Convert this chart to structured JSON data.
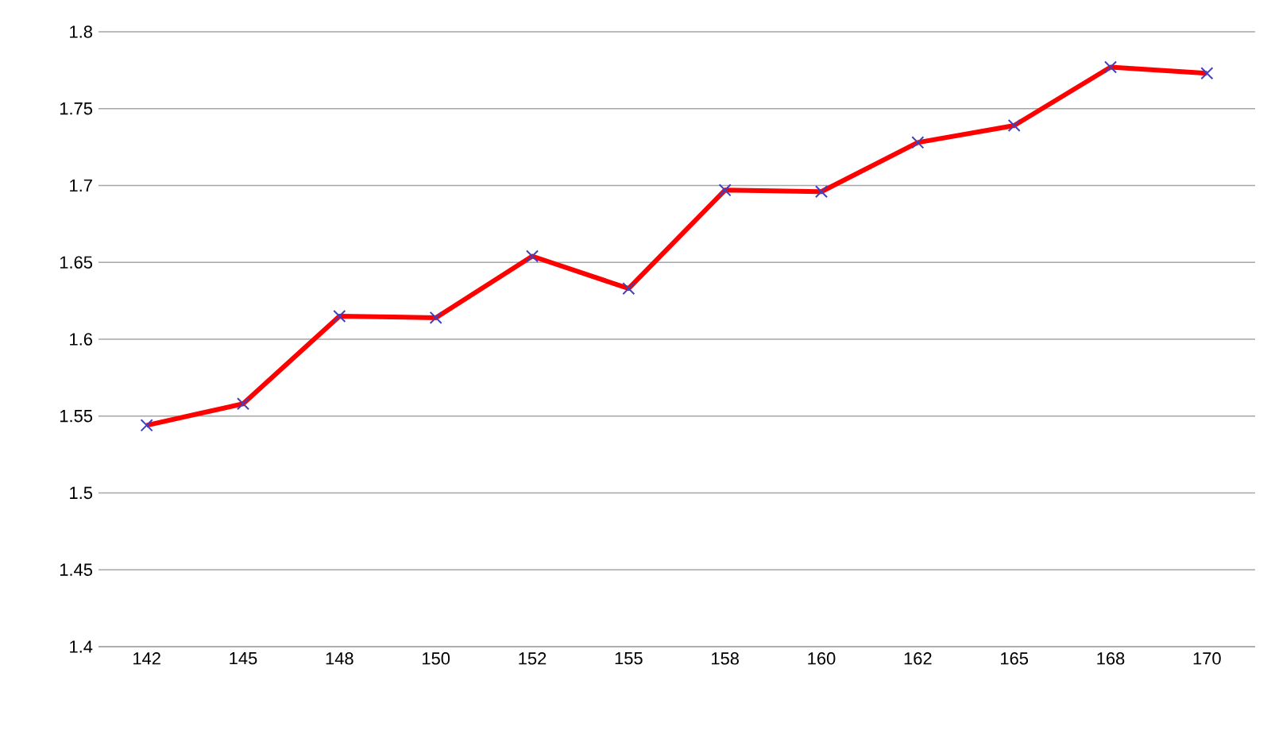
{
  "chart_data": {
    "type": "line",
    "categories": [
      "142",
      "145",
      "148",
      "150",
      "152",
      "155",
      "158",
      "160",
      "162",
      "165",
      "168",
      "170"
    ],
    "series": [
      {
        "color": "#ff0000",
        "values": [
          1.544,
          1.558,
          1.615,
          1.614,
          1.654,
          1.633,
          1.697,
          1.696,
          1.728,
          1.739,
          1.777,
          1.773
        ]
      }
    ],
    "ylim": [
      1.4,
      1.8
    ],
    "yticks": [
      1.4,
      1.45,
      1.5,
      1.55,
      1.6,
      1.65,
      1.7,
      1.75,
      1.8
    ],
    "grid": "y",
    "marker": "cross",
    "line_style": "solid"
  }
}
